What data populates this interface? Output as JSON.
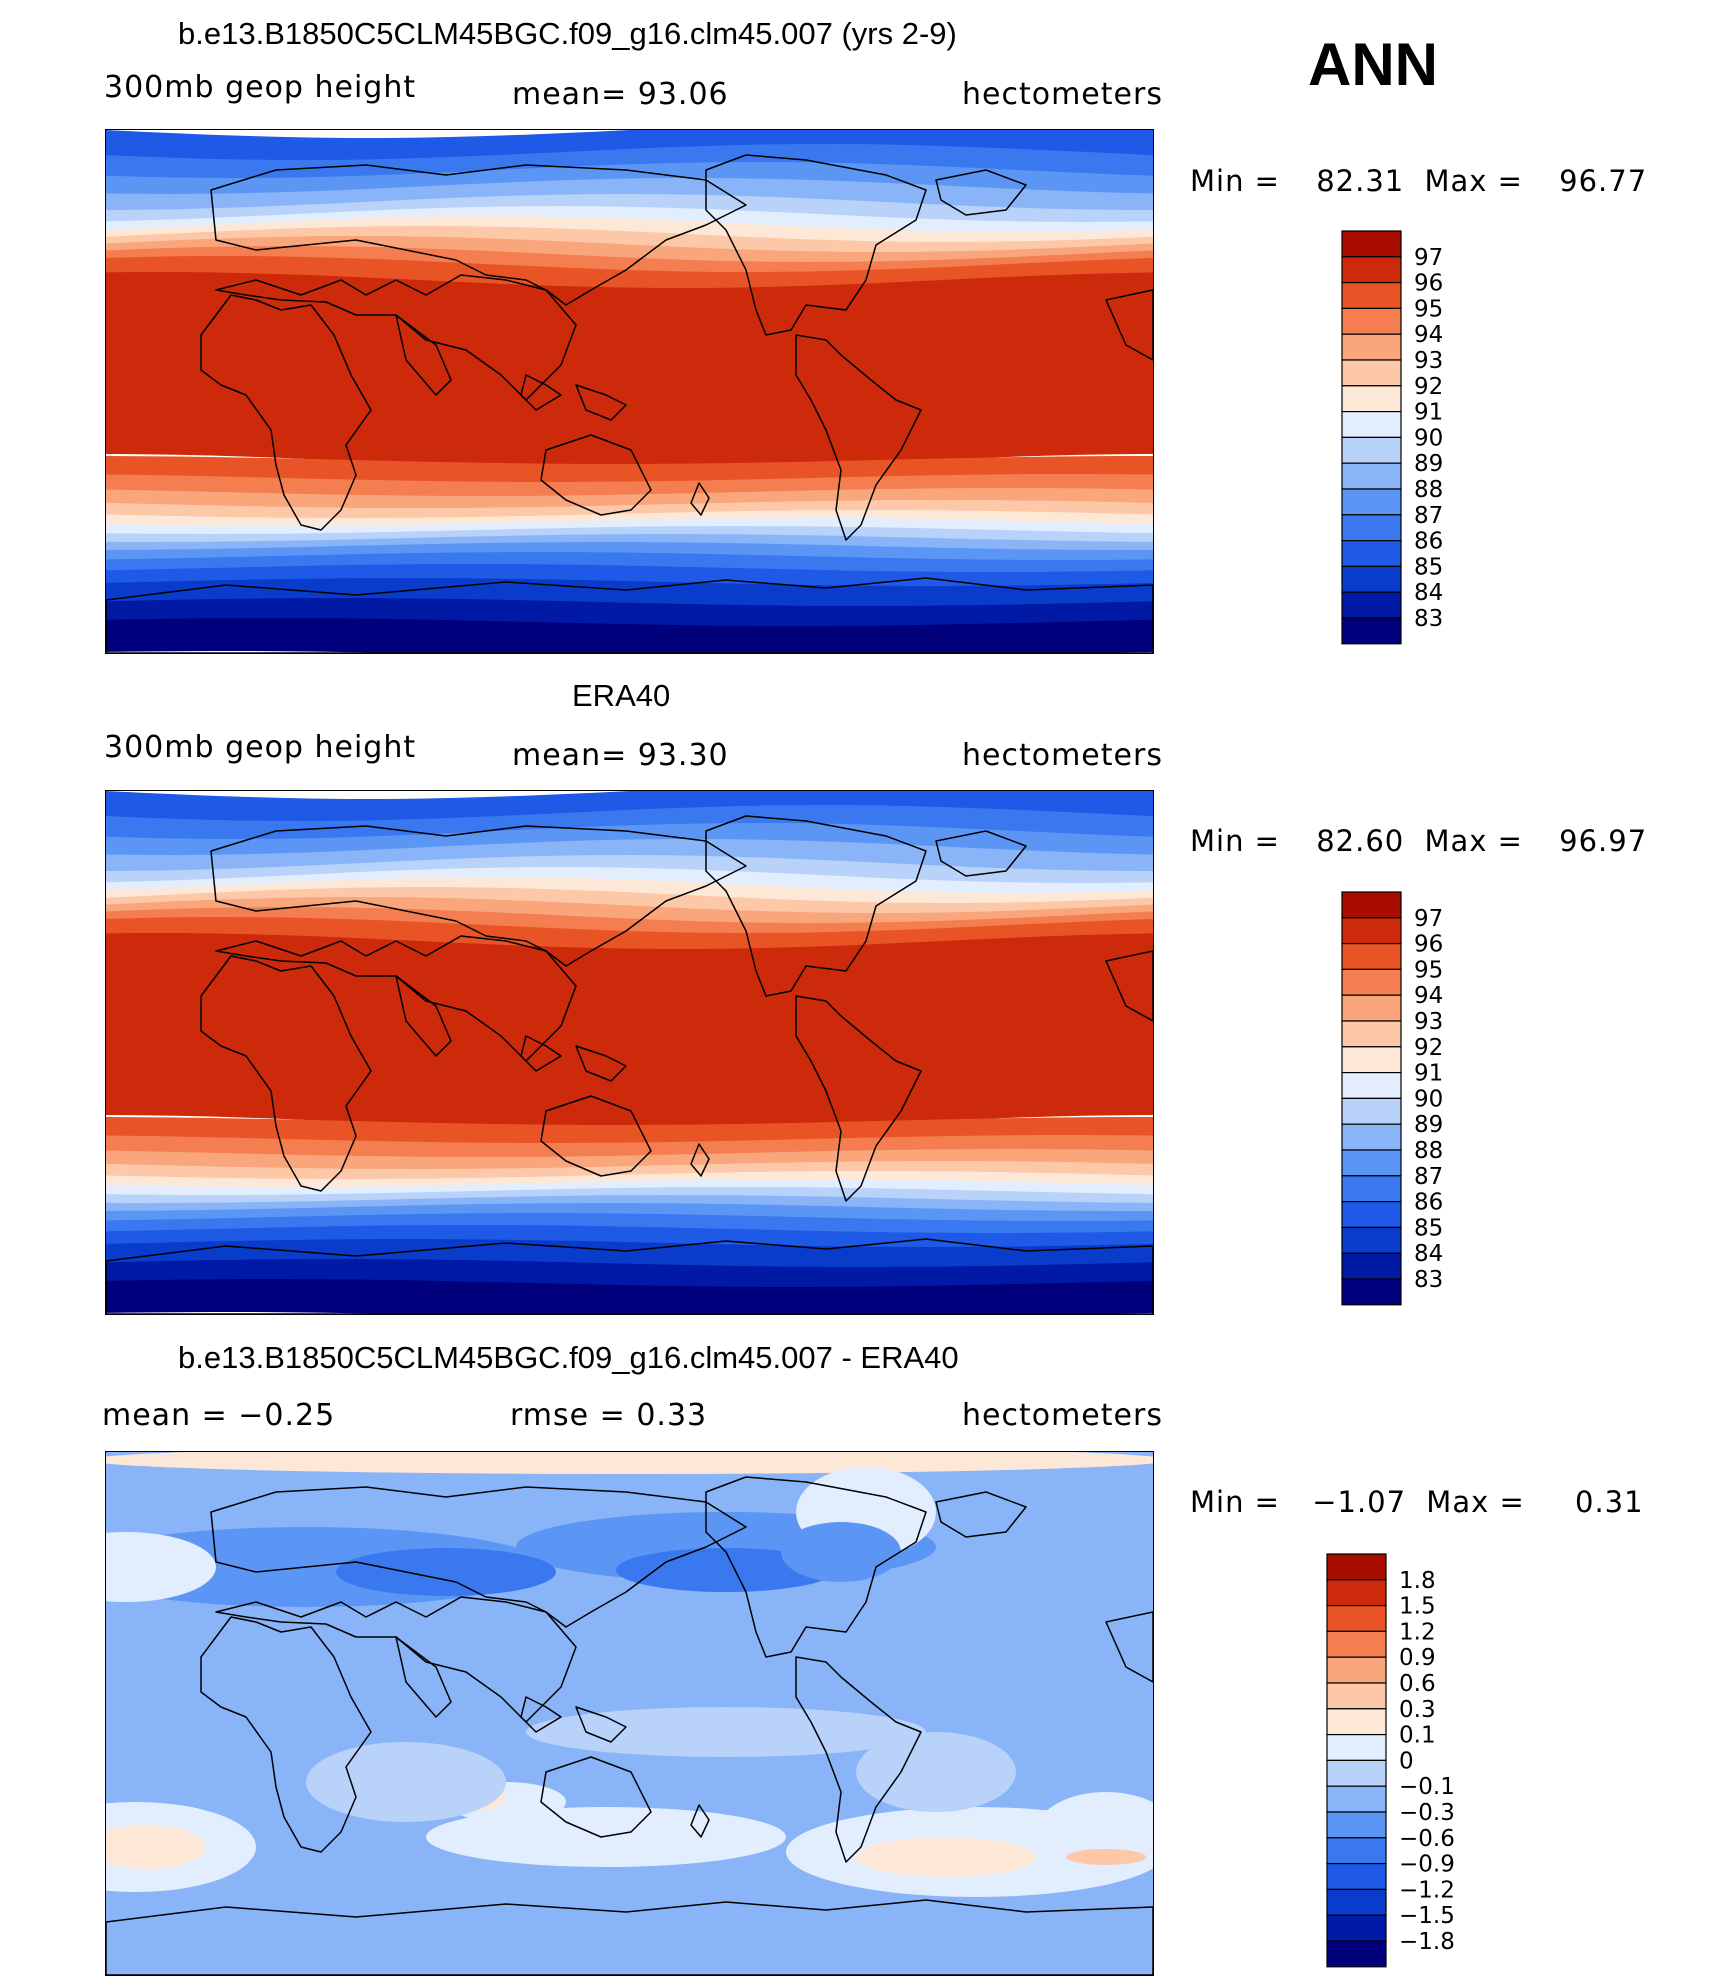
{
  "figure": {
    "season": "ANN",
    "panels": [
      {
        "title": "b.e13.B1850C5CLM45BGC.f09_g16.clm45.007 (yrs 2-9)",
        "left_label": "300mb geop height",
        "center_label": "mean=   93.06",
        "right_label": "hectometers",
        "min_label": "Min =",
        "min_value": "82.31",
        "max_label": "Max =",
        "max_value": "96.77",
        "field": "model"
      },
      {
        "title": "ERA40",
        "left_label": "300mb geop height",
        "center_label": "mean=   93.30",
        "right_label": "hectometers",
        "min_label": "Min =",
        "min_value": "82.60",
        "max_label": "Max =",
        "max_value": "96.97",
        "field": "obs"
      },
      {
        "title": "b.e13.B1850C5CLM45BGC.f09_g16.clm45.007 - ERA40",
        "left_label": "mean =   −0.25",
        "center_label": "rmse =    0.33",
        "right_label": "hectometers",
        "min_label": "Min =",
        "min_value": "−1.07",
        "max_label": "Max =",
        "max_value": "0.31",
        "field": "diff"
      }
    ]
  },
  "chart_data": [
    {
      "type": "heatmap",
      "title": "b.e13.B1850C5CLM45BGC.f09_g16.clm45.007 (yrs 2-9)",
      "variable": "300mb geop height",
      "units": "hectometers",
      "mean": 93.06,
      "min": 82.31,
      "max": 96.77,
      "levels": [
        "83",
        "84",
        "85",
        "86",
        "87",
        "88",
        "89",
        "90",
        "91",
        "92",
        "93",
        "94",
        "95",
        "96",
        "97"
      ],
      "colors": [
        "#00007c",
        "#001aa6",
        "#0a3ccc",
        "#1e5ae6",
        "#3a78f0",
        "#5c96f5",
        "#8ab4f8",
        "#b8d2fa",
        "#e2edfd",
        "#fde8d8",
        "#fcc8a8",
        "#f9a67c",
        "#f47e50",
        "#e85426",
        "#cc2a0a",
        "#a80d00"
      ]
    },
    {
      "type": "heatmap",
      "title": "ERA40",
      "variable": "300mb geop height",
      "units": "hectometers",
      "mean": 93.3,
      "min": 82.6,
      "max": 96.97,
      "levels": [
        "83",
        "84",
        "85",
        "86",
        "87",
        "88",
        "89",
        "90",
        "91",
        "92",
        "93",
        "94",
        "95",
        "96",
        "97"
      ],
      "colors": [
        "#00007c",
        "#001aa6",
        "#0a3ccc",
        "#1e5ae6",
        "#3a78f0",
        "#5c96f5",
        "#8ab4f8",
        "#b8d2fa",
        "#e2edfd",
        "#fde8d8",
        "#fcc8a8",
        "#f9a67c",
        "#f47e50",
        "#e85426",
        "#cc2a0a",
        "#a80d00"
      ]
    },
    {
      "type": "heatmap",
      "title": "b.e13.B1850C5CLM45BGC.f09_g16.clm45.007 - ERA40",
      "units": "hectometers",
      "mean": -0.25,
      "rmse": 0.33,
      "min": -1.07,
      "max": 0.31,
      "levels": [
        "−1.8",
        "−1.5",
        "−1.2",
        "−0.9",
        "−0.6",
        "−0.3",
        "−0.1",
        "0",
        "0.1",
        "0.3",
        "0.6",
        "0.9",
        "1.2",
        "1.5",
        "1.8"
      ],
      "colors": [
        "#00007c",
        "#001aa6",
        "#0a3ccc",
        "#1e5ae6",
        "#3a78f0",
        "#5c96f5",
        "#8ab4f8",
        "#b8d2fa",
        "#e2edfd",
        "#fde8d8",
        "#fcc8a8",
        "#f9a67c",
        "#f47e50",
        "#e85426",
        "#cc2a0a",
        "#a80d00"
      ]
    }
  ]
}
